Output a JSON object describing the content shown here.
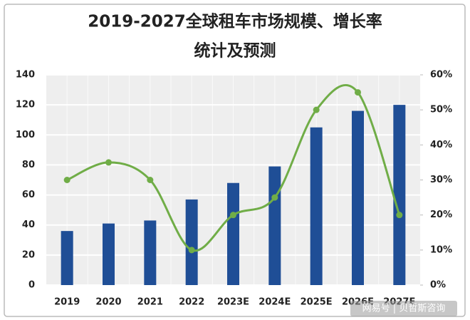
{
  "chart_data": {
    "type": "bar",
    "title": [
      "2019-2027全球租车市场规模、增长率",
      "统计及预测"
    ],
    "categories": [
      "2019",
      "2020",
      "2021",
      "2022",
      "2023E",
      "2024E",
      "2025E",
      "2026E",
      "2027E"
    ],
    "series": [
      {
        "name": "市场规模",
        "color": "#1f4e96",
        "values": [
          36,
          41,
          43,
          57,
          68,
          79,
          105,
          116,
          120
        ]
      },
      {
        "name": "增长率",
        "color": "#70ad47",
        "axis": "y2",
        "values": [
          30,
          35,
          30,
          10,
          20,
          25,
          50,
          55,
          20
        ]
      }
    ],
    "ylim": [
      0,
      140
    ],
    "yticks": [
      0,
      20,
      40,
      60,
      80,
      100,
      120,
      140
    ],
    "y2lim": [
      0,
      60
    ],
    "y2ticks": [
      {
        "value": 0,
        "label": "0%"
      },
      {
        "value": 10,
        "label": "10%"
      },
      {
        "value": 20,
        "label": "20%"
      },
      {
        "value": 30,
        "label": "30%"
      },
      {
        "value": 40,
        "label": "40%"
      },
      {
        "value": 50,
        "label": "50%"
      },
      {
        "value": 60,
        "label": "60%"
      }
    ],
    "grid": true,
    "watermark": "网易号 | 贝哲斯咨询"
  }
}
